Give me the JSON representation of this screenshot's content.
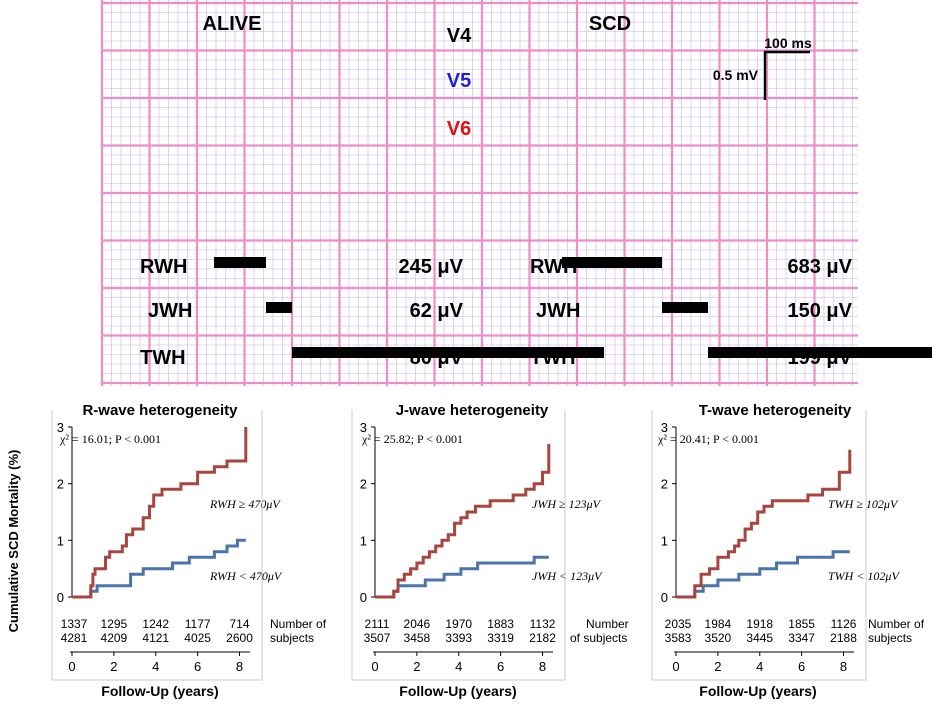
{
  "ecg": {
    "panels": [
      {
        "label": "ALIVE",
        "measures": [
          {
            "name": "RWH",
            "value": "245 μV",
            "bar_ms": [
              244,
              296
            ]
          },
          {
            "name": "JWH",
            "value": "62 μV",
            "bar_ms": [
              296,
              322
            ]
          },
          {
            "name": "TWH",
            "value": "80 μV",
            "bar_ms": [
              322,
              634
            ]
          }
        ]
      },
      {
        "label": "SCD",
        "measures": [
          {
            "name": "RWH",
            "value": "683 μV",
            "bar_ms": [
              592,
              692
            ]
          },
          {
            "name": "JWH",
            "value": "150 μV",
            "bar_ms": [
              692,
              738
            ]
          },
          {
            "name": "TWH",
            "value": "199 μV",
            "bar_ms": [
              738,
              1040
            ]
          }
        ]
      }
    ],
    "leads": [
      {
        "name": "V4",
        "color": "#000000"
      },
      {
        "name": "V5",
        "color": "#1f1fd6"
      },
      {
        "name": "V6",
        "color": "#e01010"
      }
    ],
    "scale_bar": {
      "time_label": "100 ms",
      "amplitude_label": "0.5 mV"
    },
    "grid_color": "#f08cc8",
    "minor_grid_color": "#c7b3ee"
  },
  "chart_data": [
    {
      "type": "line",
      "title": "R-wave heterogeneity",
      "xlabel": "Follow-Up (years)",
      "ylabel": "Cumulative SCD Mortality (%)",
      "xlim": [
        0,
        8.5
      ],
      "ylim": [
        0,
        3
      ],
      "xticks": [
        0,
        2,
        4,
        6,
        8
      ],
      "yticks": [
        0,
        1,
        2,
        3
      ],
      "stat": "χ² = 16.01; P < 0.001",
      "series": [
        {
          "name": "RWH ≥ 470μV",
          "color": "#a8453f",
          "x": [
            0,
            0.9,
            1.0,
            1.1,
            1.3,
            1.6,
            1.8,
            2.1,
            2.4,
            2.6,
            2.9,
            3.1,
            3.4,
            3.7,
            3.9,
            4.1,
            4.3,
            4.6,
            5.2,
            5.7,
            6.0,
            6.8,
            7.4,
            8.0,
            8.3
          ],
          "y": [
            0,
            0.2,
            0.4,
            0.5,
            0.5,
            0.7,
            0.8,
            0.8,
            0.9,
            1.1,
            1.2,
            1.2,
            1.4,
            1.6,
            1.8,
            1.8,
            1.9,
            1.9,
            2.0,
            2.0,
            2.2,
            2.3,
            2.4,
            2.4,
            3.0
          ]
        },
        {
          "name": "RWH < 470μV",
          "color": "#4a74aa",
          "x": [
            0,
            0.9,
            1.2,
            2.0,
            2.8,
            3.4,
            4.0,
            4.8,
            5.6,
            6.8,
            7.4,
            7.9,
            8.3
          ],
          "y": [
            0,
            0.1,
            0.2,
            0.2,
            0.4,
            0.5,
            0.5,
            0.6,
            0.7,
            0.8,
            0.9,
            1.0,
            1.0
          ]
        }
      ],
      "risk_table": {
        "x": [
          0,
          2,
          4,
          6,
          8
        ],
        "rows": [
          [
            1337,
            1295,
            1242,
            1177,
            714
          ],
          [
            4281,
            4209,
            4121,
            4025,
            2600
          ]
        ],
        "label_line1": "Number of",
        "label_line2": "subjects"
      }
    },
    {
      "type": "line",
      "title": "J-wave heterogeneity",
      "xlabel": "Follow-Up (years)",
      "ylabel": "",
      "xlim": [
        0,
        8.5
      ],
      "ylim": [
        0,
        3
      ],
      "xticks": [
        0,
        2,
        4,
        6,
        8
      ],
      "yticks": [
        0,
        1,
        2,
        3
      ],
      "stat": "χ² = 25.82; P < 0.001",
      "series": [
        {
          "name": "JWH ≥ 123μV",
          "color": "#a8453f",
          "x": [
            0,
            0.9,
            1.1,
            1.4,
            1.7,
            2.0,
            2.3,
            2.6,
            2.9,
            3.2,
            3.5,
            3.8,
            4.1,
            4.4,
            4.8,
            5.5,
            6.1,
            6.6,
            7.2,
            7.6,
            8.0,
            8.3
          ],
          "y": [
            0,
            0.1,
            0.3,
            0.4,
            0.5,
            0.6,
            0.7,
            0.8,
            0.9,
            1.0,
            1.1,
            1.3,
            1.4,
            1.5,
            1.6,
            1.7,
            1.7,
            1.8,
            1.9,
            2.0,
            2.2,
            2.7
          ]
        },
        {
          "name": "JWH < 123μV",
          "color": "#4a74aa",
          "x": [
            0,
            0.9,
            1.1,
            1.6,
            2.4,
            3.3,
            4.1,
            4.9,
            7.6,
            8.3
          ],
          "y": [
            0,
            0.1,
            0.2,
            0.2,
            0.3,
            0.4,
            0.5,
            0.6,
            0.7,
            0.7
          ]
        }
      ],
      "risk_table": {
        "x": [
          0,
          2,
          4,
          6,
          8
        ],
        "rows": [
          [
            2111,
            2046,
            1970,
            1883,
            1132
          ],
          [
            3507,
            3458,
            3393,
            3319,
            2182
          ]
        ],
        "label_line1": "Number",
        "label_line2": "of subjects"
      }
    },
    {
      "type": "line",
      "title": "T-wave heterogeneity",
      "xlabel": "Follow-Up (years)",
      "ylabel": "",
      "xlim": [
        0,
        8.5
      ],
      "ylim": [
        0,
        3
      ],
      "xticks": [
        0,
        2,
        4,
        6,
        8
      ],
      "yticks": [
        0,
        1,
        2,
        3
      ],
      "stat": "χ² = 20.41; P < 0.001",
      "series": [
        {
          "name": "TWH ≥ 102μV",
          "color": "#a8453f",
          "x": [
            0,
            0.9,
            1.2,
            1.6,
            2.0,
            2.5,
            2.8,
            3.0,
            3.3,
            3.6,
            3.9,
            4.2,
            4.6,
            5.0,
            5.6,
            6.3,
            7.0,
            7.8,
            8.3
          ],
          "y": [
            0,
            0.2,
            0.4,
            0.5,
            0.7,
            0.8,
            0.9,
            1.0,
            1.2,
            1.3,
            1.5,
            1.6,
            1.7,
            1.7,
            1.7,
            1.8,
            1.9,
            2.2,
            2.6
          ]
        },
        {
          "name": "TWH < 102μV",
          "color": "#4a74aa",
          "x": [
            0,
            0.9,
            1.3,
            2.0,
            3.0,
            4.0,
            4.8,
            5.8,
            6.8,
            7.5,
            8.3
          ],
          "y": [
            0,
            0.1,
            0.2,
            0.3,
            0.4,
            0.5,
            0.6,
            0.7,
            0.7,
            0.8,
            0.8
          ]
        }
      ],
      "risk_table": {
        "x": [
          0,
          2,
          4,
          6,
          8
        ],
        "rows": [
          [
            2035,
            1984,
            1918,
            1855,
            1126
          ],
          [
            3583,
            3520,
            3445,
            3347,
            2188
          ]
        ],
        "label_line1": "Number of",
        "label_line2": "subjects"
      }
    }
  ]
}
